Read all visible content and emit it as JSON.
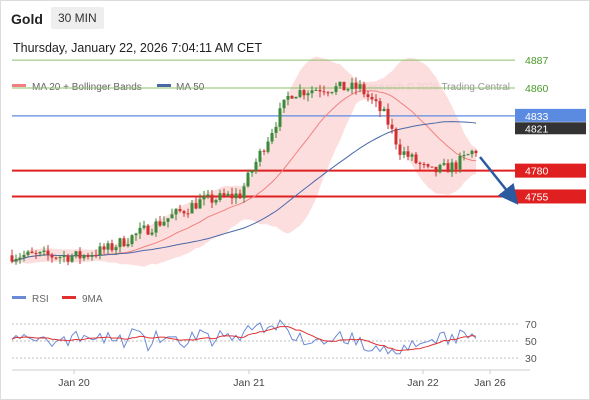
{
  "header": {
    "symbol": "Gold",
    "timeframe": "30 MIN"
  },
  "datetime": "Thursday, January 22, 2026 7:04:11 AM CET",
  "watermark": "Research © 2026 Trading Central",
  "colors": {
    "up": "#3a8a3a",
    "down": "#d03030",
    "ma20": "#f08080",
    "bollinger": "#fdd8d8",
    "ma50": "#4a68a8",
    "resistance": "#8cc06a",
    "support": "#e02020",
    "pivot": "#5b8be0",
    "price": "#333333",
    "arrow": "#2c5aa0",
    "rsi": "#6a8ad6",
    "rsi_ma": "#e03030"
  },
  "chart_data": [
    {
      "type": "candlestick",
      "legend": [
        "MA 20 + Bollinger Bands",
        "MA 50"
      ],
      "legend_position": "top-left",
      "x_labels": [
        "Jan 20",
        "Jan 21",
        "Jan 22",
        "Jan 26"
      ],
      "ylim": [
        4650,
        4900
      ],
      "levels": {
        "resistance": [
          4887,
          4860
        ],
        "pivot": 4833,
        "current_price": 4821,
        "support": [
          4780,
          4755
        ]
      },
      "level_labels": [
        "4887",
        "4860",
        "4833",
        "4821",
        "4780",
        "4755"
      ],
      "projection": {
        "from": 4820,
        "to": 4755,
        "direction": "down"
      },
      "grid": false
    },
    {
      "type": "line",
      "legend": [
        "RSI",
        "9MA"
      ],
      "legend_position": "top-left",
      "ylim": [
        20,
        80
      ],
      "guides": [
        70,
        50,
        30
      ],
      "y_labels": [
        "70",
        "50",
        "30"
      ],
      "grid": false
    }
  ]
}
